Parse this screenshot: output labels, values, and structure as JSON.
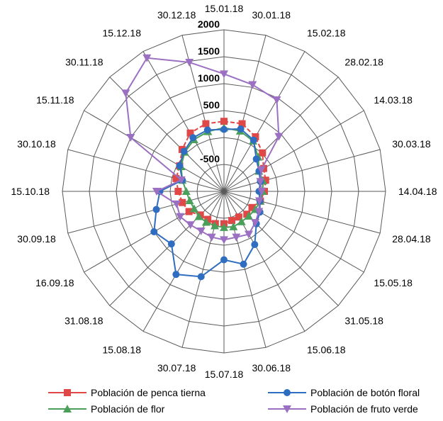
{
  "chart_data": {
    "type": "radar",
    "title": "",
    "categories": [
      "15.01.18",
      "30.01.18",
      "15.02.18",
      "28.02.18",
      "14.03.18",
      "30.03.18",
      "14.04.18",
      "28.04.18",
      "15.05.18",
      "31.05.18",
      "15.06.18",
      "30.06.18",
      "15.07.18",
      "30.07.18",
      "15.08.18",
      "31.08.18",
      "16.09.18",
      "30.09.18",
      "15.10.18",
      "30.10.18",
      "15.11.18",
      "30.11.18",
      "15.12.18",
      "30.12.18"
    ],
    "radial_ticks": [
      "-500",
      "500",
      "1000",
      "1500",
      "2000"
    ],
    "rlim": [
      -1000,
      2000
    ],
    "grid": true,
    "legend_position": "bottom",
    "series": [
      {
        "name": "Población de penca tierna",
        "color": "#e04848",
        "marker": "square",
        "values": [
          300,
          300,
          170,
          10,
          -150,
          -200,
          -250,
          -300,
          -400,
          -400,
          -450,
          -440,
          -400,
          -380,
          -400,
          -380,
          -250,
          -200,
          -150,
          -80,
          -50,
          100,
          250,
          300
        ]
      },
      {
        "name": "Población de flor",
        "color": "#4aa05a",
        "marker": "triangle-up",
        "values": [
          180,
          160,
          80,
          -100,
          -250,
          -250,
          -280,
          -300,
          -330,
          -350,
          -350,
          -320,
          -330,
          -340,
          -340,
          -340,
          -360,
          -340,
          -300,
          -200,
          -80,
          30,
          110,
          150
        ]
      },
      {
        "name": "Población de botón floral",
        "color": "#2e6dbf",
        "marker": "circle",
        "values": [
          150,
          200,
          100,
          -150,
          -250,
          -300,
          -350,
          -310,
          -230,
          -150,
          140,
          400,
          270,
          640,
          780,
          380,
          500,
          300,
          190,
          -200,
          -50,
          50,
          150,
          180
        ]
      },
      {
        "name": "Población de fruto verde",
        "color": "#9b6fc2",
        "marker": "triangle-down",
        "values": [
          1180,
          1050,
          960,
          440,
          -200,
          -300,
          -300,
          -320,
          -250,
          -180,
          -80,
          -120,
          -100,
          -120,
          -150,
          -120,
          -60,
          -90,
          250,
          -180,
          1000,
          1580,
          1860,
          1480
        ]
      }
    ]
  }
}
